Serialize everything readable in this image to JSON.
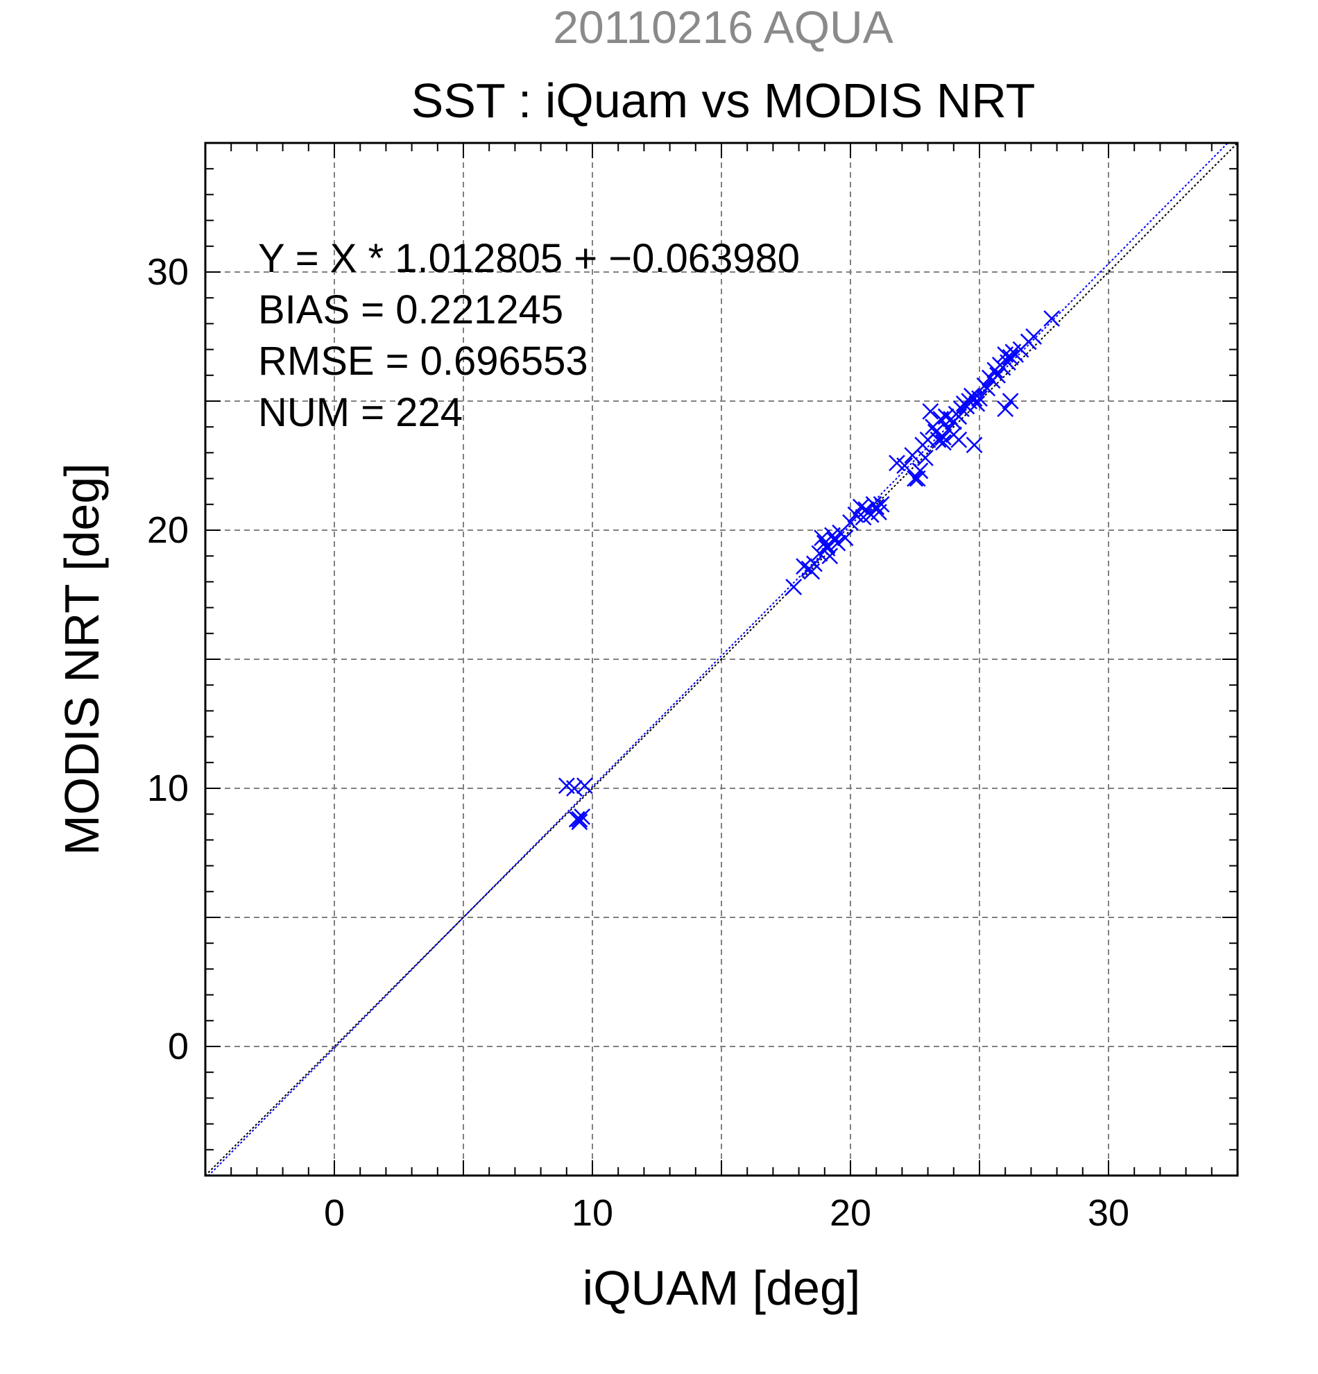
{
  "chart_data": {
    "type": "scatter",
    "title": "SST : iQuam vs MODIS NRT",
    "subtitle": "20110216 AQUA",
    "xlabel": "iQUAM [deg]",
    "ylabel": "MODIS NRT [deg]",
    "xlim": [
      -5,
      35
    ],
    "ylim": [
      -5,
      35
    ],
    "xticks": [
      0,
      10,
      20,
      30
    ],
    "yticks": [
      0,
      10,
      20,
      30
    ],
    "grid": true,
    "annotations": [
      "Y = X * 1.012805 + −0.063980",
      "BIAS = 0.221245",
      "RMSE = 0.696553",
      "NUM = 224"
    ],
    "fit_line": {
      "slope": 1.012805,
      "intercept": -0.06398
    },
    "identity_line": true,
    "colors": {
      "points": "#0000ff",
      "fit_line": "#0000ff",
      "identity_line": "#000000",
      "grid": "#808080",
      "subtitle": "#8a8a8a"
    },
    "series": [
      {
        "marker": "x",
        "x": [
          9.0,
          9.3,
          9.7,
          9.5,
          9.4,
          9.6,
          9.5,
          17.8,
          18.2,
          18.4,
          18.6,
          18.5,
          18.8,
          19.0,
          19.1,
          19.3,
          19.4,
          19.2,
          19.6,
          19.8,
          20.0,
          19.1,
          19.5,
          18.9,
          20.2,
          20.4,
          20.6,
          20.8,
          21.0,
          21.2,
          21.1,
          20.9,
          20.5,
          21.8,
          22.1,
          22.5,
          22.7,
          22.9,
          23.0,
          22.6,
          22.8,
          23.2,
          23.3,
          23.4,
          23.5,
          23.6,
          23.7,
          23.1,
          22.4,
          23.8,
          23.9,
          24.0,
          24.1,
          24.2,
          24.3,
          24.4,
          24.5,
          24.6,
          24.7,
          24.8,
          24.9,
          23.6,
          24.0,
          24.2,
          24.8,
          25.0,
          25.2,
          25.4,
          25.6,
          25.8,
          26.0,
          26.2,
          26.3,
          26.1,
          25.9,
          25.7,
          25.5,
          25.3,
          26.0,
          26.2,
          26.4,
          26.6,
          26.9,
          27.1,
          27.8
        ],
        "y": [
          10.1,
          10.0,
          10.1,
          8.8,
          8.8,
          8.9,
          8.7,
          17.8,
          18.6,
          18.5,
          18.7,
          18.4,
          19.1,
          19.5,
          19.3,
          19.8,
          19.6,
          19.0,
          19.9,
          19.7,
          20.3,
          19.4,
          19.5,
          19.7,
          20.6,
          20.9,
          20.8,
          20.6,
          20.9,
          21.0,
          20.7,
          21.0,
          20.5,
          22.6,
          22.5,
          22.0,
          22.3,
          22.8,
          23.5,
          22.0,
          23.3,
          24.0,
          23.8,
          23.5,
          24.3,
          23.6,
          24.4,
          24.6,
          22.9,
          23.9,
          24.3,
          24.2,
          24.5,
          24.4,
          24.7,
          24.9,
          24.8,
          25.0,
          25.2,
          25.1,
          24.9,
          23.4,
          23.7,
          23.5,
          23.3,
          25.1,
          25.6,
          25.9,
          26.2,
          26.4,
          26.8,
          26.7,
          26.9,
          26.5,
          26.3,
          26.0,
          25.8,
          25.5,
          24.7,
          25.0,
          26.8,
          27.0,
          27.3,
          27.5,
          28.2
        ]
      }
    ]
  }
}
